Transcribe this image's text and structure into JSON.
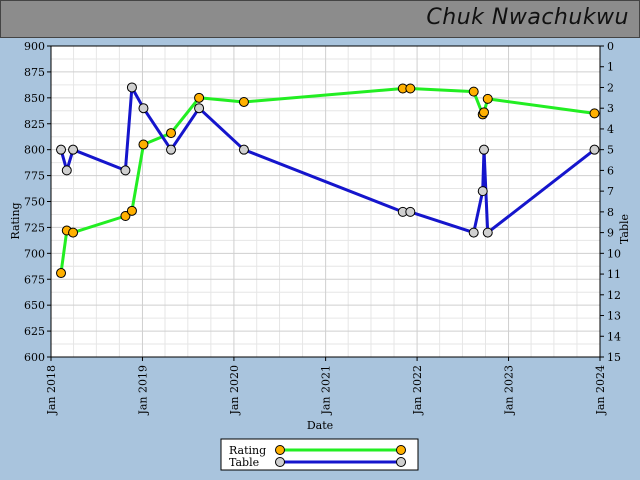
{
  "header": {
    "title": "Chuk Nwachukwu"
  },
  "chart_data": {
    "type": "line",
    "xlabel": "Date",
    "ylabel": "Rating",
    "y2label": "Table",
    "ylim": [
      600,
      900
    ],
    "y2lim": [
      0,
      15
    ],
    "y2_inverted": true,
    "xlim": [
      "2018-01-01",
      "2024-01-01"
    ],
    "x_ticks": [
      "Jan 2018",
      "Jan 2019",
      "Jan 2020",
      "Jan 2021",
      "Jan 2022",
      "Jan 2023",
      "Jan 2024"
    ],
    "y_ticks": [
      600,
      625,
      650,
      675,
      700,
      725,
      750,
      775,
      800,
      825,
      850,
      875,
      900
    ],
    "y2_ticks": [
      0,
      1,
      2,
      3,
      4,
      5,
      6,
      7,
      8,
      9,
      10,
      11,
      12,
      13,
      14,
      15
    ],
    "grid": true,
    "legend_position": "bottom",
    "series": [
      {
        "name": "Rating",
        "axis": "left",
        "line_color": "#22ee22",
        "marker_color": "#ffb000",
        "points": [
          [
            "2018-02-10",
            681
          ],
          [
            "2018-03-05",
            722
          ],
          [
            "2018-03-30",
            720
          ],
          [
            "2018-10-25",
            736
          ],
          [
            "2018-11-20",
            741
          ],
          [
            "2019-01-05",
            805
          ],
          [
            "2019-04-25",
            816
          ],
          [
            "2019-08-15",
            850
          ],
          [
            "2020-02-10",
            846
          ],
          [
            "2021-11-05",
            859
          ],
          [
            "2021-12-05",
            859
          ],
          [
            "2022-08-15",
            856
          ],
          [
            "2022-09-20",
            834
          ],
          [
            "2022-09-25",
            836
          ],
          [
            "2022-10-10",
            849
          ],
          [
            "2023-12-10",
            835
          ]
        ]
      },
      {
        "name": "Table",
        "axis": "right",
        "line_color": "#1515cc",
        "marker_color": "#d0d0d0",
        "points": [
          [
            "2018-02-10",
            5
          ],
          [
            "2018-03-05",
            6
          ],
          [
            "2018-03-30",
            5
          ],
          [
            "2018-10-25",
            6
          ],
          [
            "2018-11-20",
            2
          ],
          [
            "2019-01-05",
            3
          ],
          [
            "2019-04-25",
            5
          ],
          [
            "2019-08-15",
            3
          ],
          [
            "2020-02-10",
            5
          ],
          [
            "2021-11-05",
            8
          ],
          [
            "2021-12-05",
            8
          ],
          [
            "2022-08-15",
            9
          ],
          [
            "2022-09-20",
            7
          ],
          [
            "2022-09-25",
            5
          ],
          [
            "2022-10-10",
            9
          ],
          [
            "2023-12-10",
            5
          ]
        ]
      }
    ]
  }
}
